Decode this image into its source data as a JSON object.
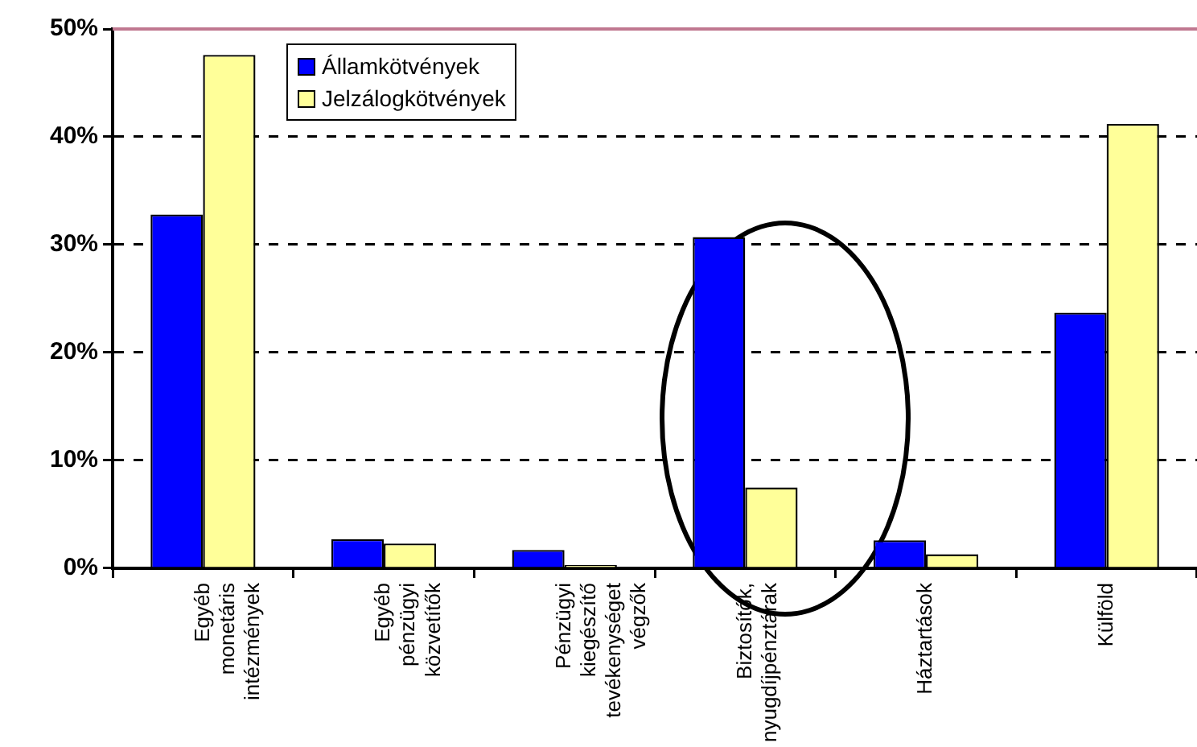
{
  "chart_data": {
    "type": "bar",
    "categories": [
      "Egyéb monetáris intézmények",
      "Egyéb pénzügyi közvetítők",
      "Pénzügyi kiegészítő tevékenységet végzők",
      "Biztosítók, nyugdíjpénztárak",
      "Háztartások",
      "Külföld"
    ],
    "series": [
      {
        "name": "Államkötvények",
        "color": "#0000ff",
        "values": [
          32.8,
          2.7,
          1.7,
          30.7,
          2.6,
          23.7
        ]
      },
      {
        "name": "Jelzálogkötvények",
        "color": "#ffff99",
        "values": [
          47.6,
          2.3,
          0.3,
          7.5,
          1.3,
          41.2
        ]
      }
    ],
    "ylim": [
      0,
      50
    ],
    "yticks": [
      {
        "value": 0,
        "label": "0%"
      },
      {
        "value": 10,
        "label": "10%"
      },
      {
        "value": 20,
        "label": "20%"
      },
      {
        "value": 30,
        "label": "30%"
      },
      {
        "value": 40,
        "label": "40%"
      },
      {
        "value": 50,
        "label": "50%"
      }
    ],
    "grid": "y",
    "legend": "top"
  }
}
